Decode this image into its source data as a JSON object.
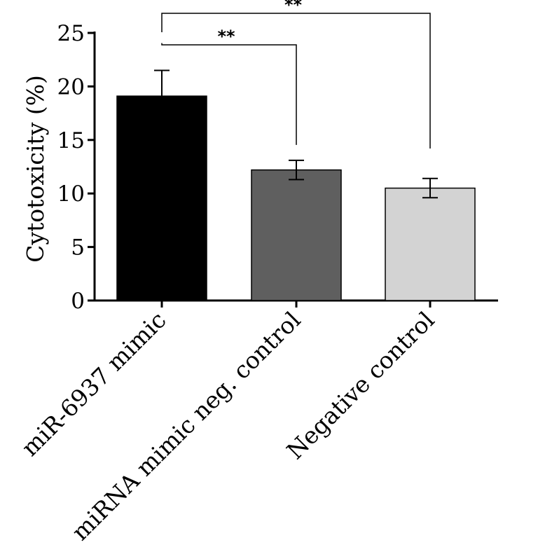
{
  "chart_data": {
    "type": "bar",
    "title": "",
    "xlabel": "",
    "ylabel": "Cytotoxicity (%)",
    "ylim": [
      0,
      25
    ],
    "yticks": [
      0,
      5,
      10,
      15,
      20,
      25
    ],
    "grid": false,
    "categories": [
      "miR-6937 mimic",
      "miRNA mimic neg. control",
      "Negative control"
    ],
    "values": [
      19.1,
      12.2,
      10.5
    ],
    "errors": [
      2.4,
      0.9,
      0.9
    ],
    "bar_colors": [
      "#000000",
      "#5f5f5f",
      "#d3d3d3"
    ],
    "significance": [
      {
        "from": 0,
        "to": 1,
        "label": "**"
      },
      {
        "from": 0,
        "to": 2,
        "label": "**"
      }
    ]
  }
}
